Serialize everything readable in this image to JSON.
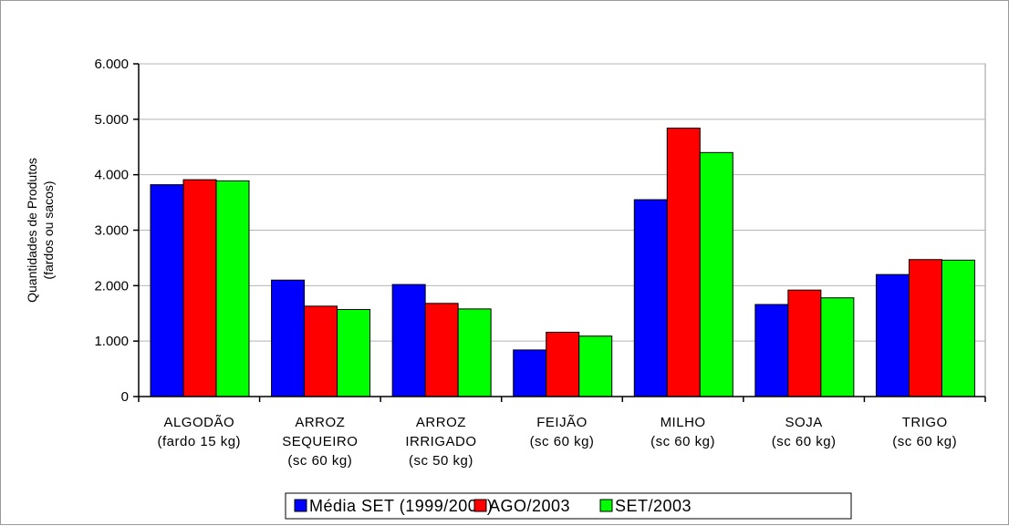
{
  "chart_data": {
    "type": "bar",
    "title": "",
    "ylabel_lines": [
      "Quantidades de Produtos",
      "(fardos ou sacos)"
    ],
    "xlabel": "",
    "ylim": [
      0,
      6000
    ],
    "yticks": [
      0,
      1000,
      2000,
      3000,
      4000,
      5000,
      6000
    ],
    "ytick_labels": [
      "0",
      "1.000",
      "2.000",
      "3.000",
      "4.000",
      "5.000",
      "6.000"
    ],
    "grid": true,
    "legend_position": "bottom",
    "categories": [
      [
        "ALGODÃO",
        "(fardo 15 kg)"
      ],
      [
        "ARROZ",
        "SEQUEIRO",
        "(sc 60 kg)"
      ],
      [
        "ARROZ",
        "IRRIGADO",
        "(sc 50 kg)"
      ],
      [
        "FEIJÃO",
        "(sc 60 kg)"
      ],
      [
        "MILHO",
        "(sc 60 kg)"
      ],
      [
        "SOJA",
        "(sc 60 kg)"
      ],
      [
        "TRIGO",
        "(sc 60 kg)"
      ]
    ],
    "series": [
      {
        "name": "Média SET (1999/2003)",
        "color": "#0000ff",
        "values": [
          3820,
          2100,
          2020,
          840,
          3550,
          1660,
          2200
        ]
      },
      {
        "name": "AGO/2003",
        "color": "#ff0000",
        "values": [
          3910,
          1630,
          1680,
          1160,
          4840,
          1920,
          2470
        ]
      },
      {
        "name": "SET/2003",
        "color": "#00ff00",
        "values": [
          3890,
          1570,
          1580,
          1090,
          4400,
          1780,
          2460
        ]
      }
    ]
  }
}
